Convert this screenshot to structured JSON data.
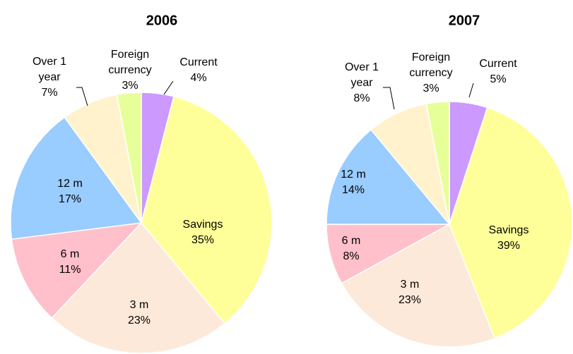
{
  "chart_data": [
    {
      "type": "pie",
      "title": "2006",
      "categories": [
        "Current",
        "Savings",
        "3 m",
        "6 m",
        "12 m",
        "Over 1 year",
        "Foreign currency"
      ],
      "values": [
        4,
        35,
        23,
        11,
        17,
        7,
        3
      ],
      "value_labels": [
        "4%",
        "35%",
        "23%",
        "11%",
        "17%",
        "7%",
        "3%"
      ],
      "colors": [
        "#cc99ff",
        "#ffff99",
        "#fde9d9",
        "#ffc0cb",
        "#99ccff",
        "#fff2cc",
        "#e6ff99"
      ]
    },
    {
      "type": "pie",
      "title": "2007",
      "categories": [
        "Current",
        "Savings",
        "3 m",
        "6 m",
        "12 m",
        "Over 1 year",
        "Foreign currency"
      ],
      "values": [
        5,
        39,
        23,
        8,
        14,
        8,
        3
      ],
      "value_labels": [
        "5%",
        "39%",
        "23%",
        "8%",
        "14%",
        "8%",
        "3%"
      ],
      "colors": [
        "#cc99ff",
        "#ffff99",
        "#fde9d9",
        "#ffc0cb",
        "#99ccff",
        "#fff2cc",
        "#e6ff99"
      ]
    }
  ]
}
